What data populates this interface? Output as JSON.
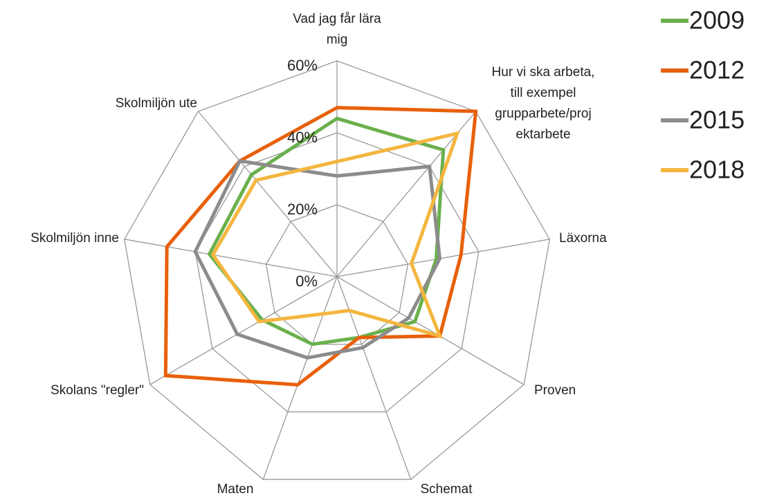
{
  "chart_data": {
    "type": "radar",
    "categories": [
      [
        "Vad jag får lära",
        "mig"
      ],
      [
        "Hur vi ska arbeta,",
        "till exempel",
        "grupparbete/proj",
        "ektarbete"
      ],
      [
        "Läxorna"
      ],
      [
        "Proven"
      ],
      [
        "Schemat"
      ],
      [
        "Maten"
      ],
      [
        "Skolans \"regler\""
      ],
      [
        "Skolmiljön  inne"
      ],
      [
        "Skolmiljön  ute"
      ]
    ],
    "series": [
      {
        "name": "2009",
        "color": "#6ab04c",
        "values": [
          44,
          46,
          28,
          25,
          18,
          20,
          24,
          36,
          37
        ]
      },
      {
        "name": "2012",
        "color": "#e8600a",
        "values": [
          47,
          60,
          35,
          33,
          18,
          32,
          55,
          48,
          42
        ]
      },
      {
        "name": "2015",
        "color": "#8c8c8c",
        "values": [
          28,
          40,
          29,
          23,
          21,
          24,
          32,
          40,
          42
        ]
      },
      {
        "name": "2018",
        "color": "#f4b63f",
        "values": [
          32,
          52,
          21,
          33,
          10,
          11,
          25,
          35,
          35
        ]
      }
    ],
    "rlim": [
      0,
      60
    ],
    "rticks": [
      {
        "value": 0,
        "label": "0%"
      },
      {
        "value": 20,
        "label": "20%"
      },
      {
        "value": 40,
        "label": "40%"
      },
      {
        "value": 60,
        "label": "60%"
      }
    ],
    "grid": true,
    "legend": "top-right"
  }
}
